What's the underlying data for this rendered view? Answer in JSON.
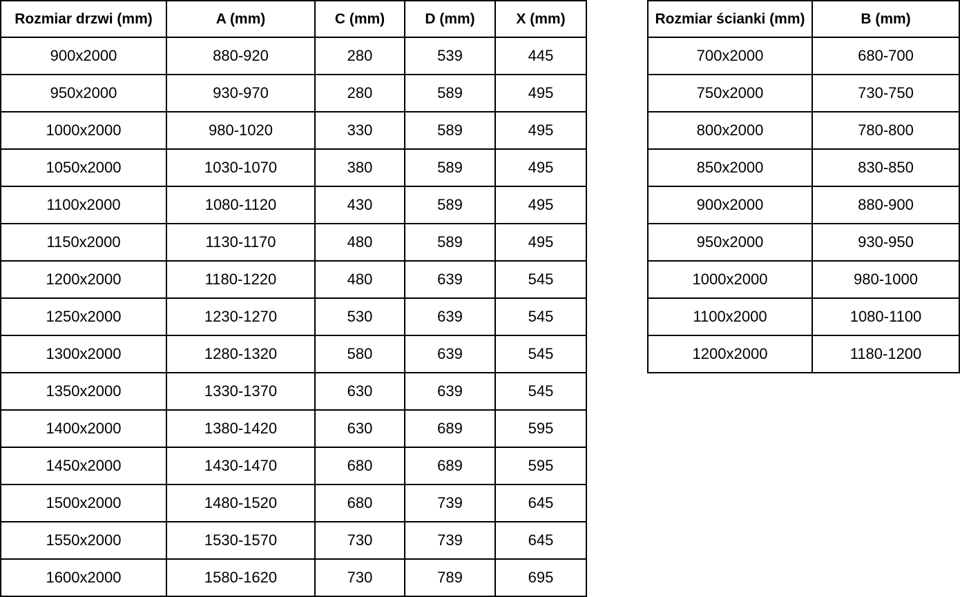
{
  "colors": {
    "border": "#000000",
    "text": "#000000",
    "background": "#ffffff"
  },
  "tables": {
    "doors": {
      "name": "door-sizes-table",
      "headers": [
        "Rozmiar drzwi (mm)",
        "A (mm)",
        "C (mm)",
        "D (mm)",
        "X (mm)"
      ],
      "rows": [
        [
          "900x2000",
          "880-920",
          "280",
          "539",
          "445"
        ],
        [
          "950x2000",
          "930-970",
          "280",
          "589",
          "495"
        ],
        [
          "1000x2000",
          "980-1020",
          "330",
          "589",
          "495"
        ],
        [
          "1050x2000",
          "1030-1070",
          "380",
          "589",
          "495"
        ],
        [
          "1100x2000",
          "1080-1120",
          "430",
          "589",
          "495"
        ],
        [
          "1150x2000",
          "1130-1170",
          "480",
          "589",
          "495"
        ],
        [
          "1200x2000",
          "1180-1220",
          "480",
          "639",
          "545"
        ],
        [
          "1250x2000",
          "1230-1270",
          "530",
          "639",
          "545"
        ],
        [
          "1300x2000",
          "1280-1320",
          "580",
          "639",
          "545"
        ],
        [
          "1350x2000",
          "1330-1370",
          "630",
          "639",
          "545"
        ],
        [
          "1400x2000",
          "1380-1420",
          "630",
          "689",
          "595"
        ],
        [
          "1450x2000",
          "1430-1470",
          "680",
          "689",
          "595"
        ],
        [
          "1500x2000",
          "1480-1520",
          "680",
          "739",
          "645"
        ],
        [
          "1550x2000",
          "1530-1570",
          "730",
          "739",
          "645"
        ],
        [
          "1600x2000",
          "1580-1620",
          "730",
          "789",
          "695"
        ]
      ]
    },
    "walls": {
      "name": "wall-sizes-table",
      "headers": [
        "Rozmiar ścianki (mm)",
        "B (mm)"
      ],
      "rows": [
        [
          "700x2000",
          "680-700"
        ],
        [
          "750x2000",
          "730-750"
        ],
        [
          "800x2000",
          "780-800"
        ],
        [
          "850x2000",
          "830-850"
        ],
        [
          "900x2000",
          "880-900"
        ],
        [
          "950x2000",
          "930-950"
        ],
        [
          "1000x2000",
          "980-1000"
        ],
        [
          "1100x2000",
          "1080-1100"
        ],
        [
          "1200x2000",
          "1180-1200"
        ]
      ]
    }
  }
}
